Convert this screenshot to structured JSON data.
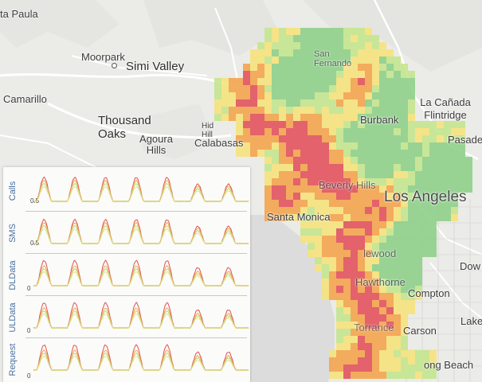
{
  "map": {
    "places": [
      {
        "key": "santa-paula",
        "label": "ta Paula"
      },
      {
        "key": "moorpark",
        "label": "Moorpark"
      },
      {
        "key": "simi-valley",
        "label": "Simi Valley"
      },
      {
        "key": "camarillo",
        "label": "Camarillo"
      },
      {
        "key": "thousand-oaks",
        "label": "Thousand Oaks"
      },
      {
        "key": "agoura-hills",
        "label": "Agoura Hills"
      },
      {
        "key": "hidden-hills",
        "label": "Hid Hill"
      },
      {
        "key": "calabasas",
        "label": "Calabasas"
      },
      {
        "key": "san-fernando",
        "label": "San Fernando"
      },
      {
        "key": "burbank",
        "label": "Burbank"
      },
      {
        "key": "la-canada",
        "label": "La Cañada Flintridge"
      },
      {
        "key": "pasadena",
        "label": "Pasade"
      },
      {
        "key": "beverly-hills",
        "label": "Beverly Hills"
      },
      {
        "key": "los-angeles",
        "label": "Los Angeles"
      },
      {
        "key": "santa-monica",
        "label": "Santa Monica"
      },
      {
        "key": "inglewood",
        "label": "lewood"
      },
      {
        "key": "hawthorne",
        "label": "Hawthorne"
      },
      {
        "key": "compton",
        "label": "Compton"
      },
      {
        "key": "downey",
        "label": "Dow"
      },
      {
        "key": "torrance",
        "label": "Torrance"
      },
      {
        "key": "carson",
        "label": "Carson"
      },
      {
        "key": "lakewood",
        "label": "Lake"
      },
      {
        "key": "long-beach",
        "label": "ong Beach"
      }
    ],
    "heat_colors": {
      "green": "#8fd08a",
      "light_green": "#c4e58e",
      "yellow": "#f6e27c",
      "orange": "#f4a44f",
      "red": "#e2535d"
    },
    "road_color": "#ffffff",
    "water_color": "#dcdcdc",
    "land_color": "#ebebe8"
  },
  "panel": {
    "rows": [
      {
        "label": "Calls",
        "tick": "0.5"
      },
      {
        "label": "SMS",
        "tick": "0.5"
      },
      {
        "label": "DLData",
        "tick": "0"
      },
      {
        "label": "ULData",
        "tick": "0"
      },
      {
        "label": "Request",
        "tick": "0"
      }
    ],
    "series_colors": [
      "#e0524f",
      "#f2a550",
      "#b7d97a",
      "#e8e08a"
    ],
    "cycles": 7
  }
}
